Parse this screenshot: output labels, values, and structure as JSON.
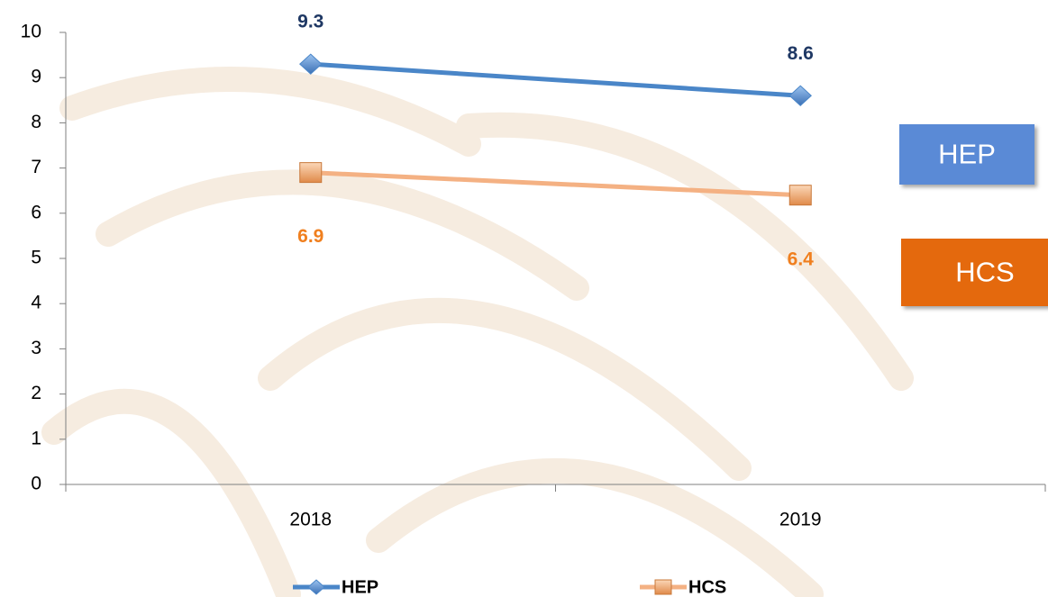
{
  "chart_data": {
    "type": "line",
    "categories": [
      "2018",
      "2019"
    ],
    "series": [
      {
        "name": "HEP",
        "color": "#4a86c8",
        "label_color": "#1f3864",
        "marker": "diamond",
        "values": [
          9.3,
          8.6
        ]
      },
      {
        "name": "HCS",
        "color": "#f4b183",
        "label_color": "#f07f1e",
        "marker": "square",
        "values": [
          6.9,
          6.4
        ]
      }
    ],
    "ylim": [
      0,
      10
    ],
    "yticks": [
      0,
      1,
      2,
      3,
      4,
      5,
      6,
      7,
      8,
      9,
      10
    ],
    "side_boxes": [
      {
        "text": "HEP",
        "color": "#5a8ad6"
      },
      {
        "text": "HCS",
        "color": "#e4690f"
      }
    ],
    "legend": "bottom"
  }
}
